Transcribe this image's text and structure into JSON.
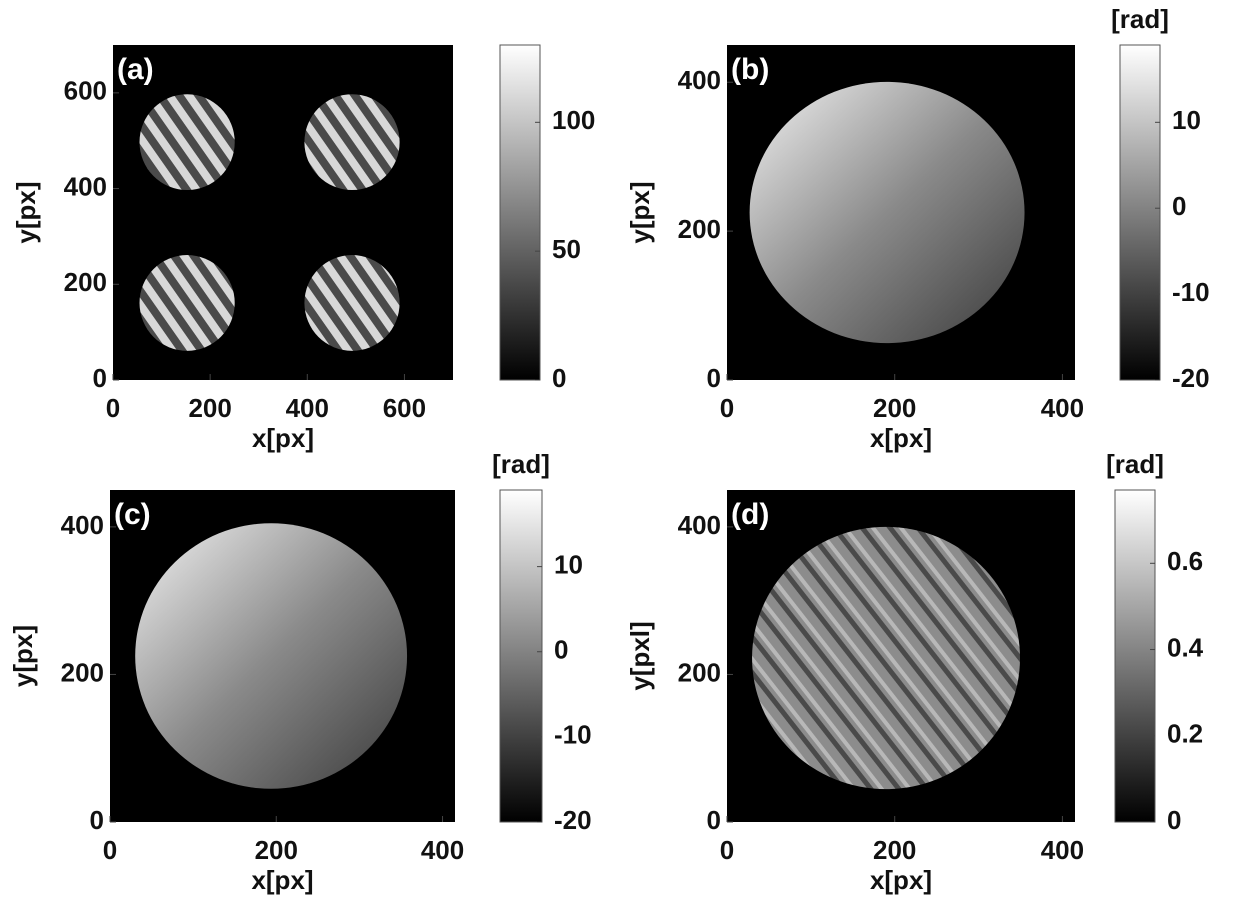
{
  "chart_data": [
    {
      "type": "image",
      "panel_label": "(a)",
      "xlabel": "x[px]",
      "ylabel": "y[px]",
      "xlim": [
        0,
        700
      ],
      "xticks": [
        0,
        200,
        400,
        600
      ],
      "ylim": [
        0,
        700
      ],
      "yticks": [
        0,
        200,
        400,
        600
      ],
      "colorbar": {
        "clim": [
          0,
          130
        ],
        "ticks": [
          0,
          50,
          100
        ]
      }
    },
    {
      "type": "image",
      "panel_label": "(b)",
      "xlabel": "x[px]",
      "ylabel": "y[px]",
      "xlim": [
        0,
        415
      ],
      "xticks": [
        0,
        200,
        400
      ],
      "ylim": [
        0,
        450
      ],
      "yticks": [
        0,
        200,
        400
      ],
      "colorbar": {
        "label": "[rad]",
        "clim": [
          -20,
          19
        ],
        "ticks": [
          -20,
          -10,
          0,
          10
        ]
      }
    },
    {
      "type": "image",
      "panel_label": "(c)",
      "xlabel": "x[px]",
      "ylabel": "y[px]",
      "xlim": [
        0,
        415
      ],
      "xticks": [
        0,
        200,
        400
      ],
      "ylim": [
        0,
        450
      ],
      "yticks": [
        0,
        200,
        400
      ],
      "colorbar": {
        "label": "[rad]",
        "clim": [
          -20,
          19
        ],
        "ticks": [
          -20,
          -10,
          0,
          10
        ]
      }
    },
    {
      "type": "image",
      "panel_label": "(d)",
      "xlabel": "x[px]",
      "ylabel": "y[pxl]",
      "xlim": [
        0,
        415
      ],
      "xticks": [
        0,
        200,
        400
      ],
      "ylim": [
        0,
        450
      ],
      "yticks": [
        0,
        200,
        400
      ],
      "colorbar": {
        "label": "[rad]",
        "clim": [
          0,
          0.77
        ],
        "ticks": [
          0,
          0.2,
          0.4,
          0.6
        ]
      }
    }
  ]
}
